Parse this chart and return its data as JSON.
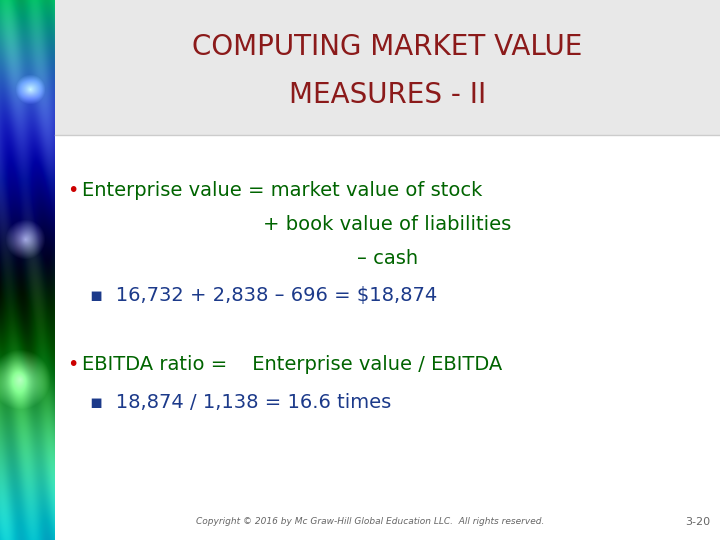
{
  "title_line1": "COMPUTING MARKET VALUE",
  "title_line2": "MEASURES - II",
  "title_color": "#8B1A1A",
  "title_bg_color": "#E8E8E8",
  "content_color": "#006400",
  "bullet_color": "#CC0000",
  "sub_bullet_color": "#1C3A8A",
  "bg_color": "#FFFFFF",
  "bullet1_line1": "Enterprise value = market value of stock",
  "bullet1_line2": "+ book value of liabilities",
  "bullet1_line3": "– cash",
  "sub_bullet1": "▪  16,732 + 2,838 – 696 = $18,874",
  "bullet2": "EBITDA ratio =    Enterprise value / EBITDA",
  "sub_bullet2": "▪  18,874 / 1,138 = 16.6 times",
  "footer": "Copyright © 2016 by Mc Graw-Hill Global Education LLC.  All rights reserved.",
  "page_num": "3-20",
  "footer_color": "#666666"
}
